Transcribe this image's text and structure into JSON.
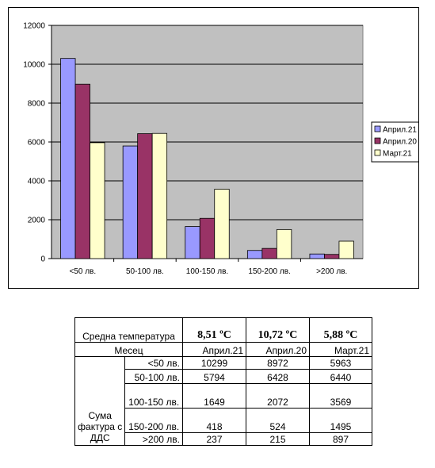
{
  "chart_data": {
    "type": "bar",
    "categories": [
      "<50 лв.",
      "50-100 лв.",
      "100-150 лв.",
      "150-200 лв.",
      ">200 лв."
    ],
    "series": [
      {
        "name": "Април.21",
        "values": [
          10299,
          5794,
          1649,
          418,
          237
        ],
        "color": "#9999FF"
      },
      {
        "name": "Април.20",
        "values": [
          8972,
          6428,
          2072,
          524,
          215
        ],
        "color": "#993366"
      },
      {
        "name": "Март.21",
        "values": [
          5963,
          6440,
          3569,
          1495,
          897
        ],
        "color": "#FFFFCC"
      }
    ],
    "ylim": [
      0,
      12000
    ],
    "yticks": [
      0,
      2000,
      4000,
      6000,
      8000,
      10000,
      12000
    ],
    "grid": true,
    "legend": "right",
    "plot_bg": "#C0C0C0"
  },
  "table": {
    "temp_label": "Средна температура",
    "temps": [
      {
        "value": "8,51",
        "unit": "ºC"
      },
      {
        "value": "10,72",
        "unit": "ºC"
      },
      {
        "value": "5,88",
        "unit": "ºC"
      }
    ],
    "month_label": "Месец",
    "months": [
      "Април.21",
      "Април.20",
      "Март.21"
    ],
    "group_label": "Сума фактура с ДДС",
    "rows": [
      {
        "label": "<50 лв.",
        "values": [
          "10299",
          "8972",
          "5963"
        ]
      },
      {
        "label": "50-100 лв.",
        "values": [
          "5794",
          "6428",
          "6440"
        ]
      },
      {
        "label": "100-150 лв.",
        "values": [
          "1649",
          "2072",
          "3569"
        ]
      },
      {
        "label": "150-200 лв.",
        "values": [
          "418",
          "524",
          "1495"
        ]
      },
      {
        "label": ">200 лв.",
        "values": [
          "237",
          "215",
          "897"
        ]
      }
    ]
  }
}
